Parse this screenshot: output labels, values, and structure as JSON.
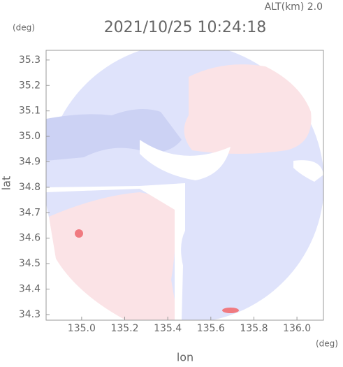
{
  "chart_data": {
    "type": "map",
    "title": "2021/10/25 10:24:18",
    "annotations": [
      "ALT(km) 2.0",
      "(deg)",
      "(deg)"
    ],
    "xlabel": "lon",
    "ylabel": "lat",
    "xlim": [
      134.835,
      136.123
    ],
    "ylim": [
      34.278,
      35.338
    ],
    "xticks": [
      {
        "value": 135,
        "label": "135.0"
      },
      135.2,
      135.4,
      135.6,
      135.8,
      {
        "value": 136,
        "label": "136.0"
      }
    ],
    "yticks": [
      34.3,
      34.4,
      34.5,
      34.6,
      34.7,
      34.8,
      34.9,
      {
        "value": 35,
        "label": "35.0"
      },
      35.1,
      35.2,
      35.3
    ]
  }
}
